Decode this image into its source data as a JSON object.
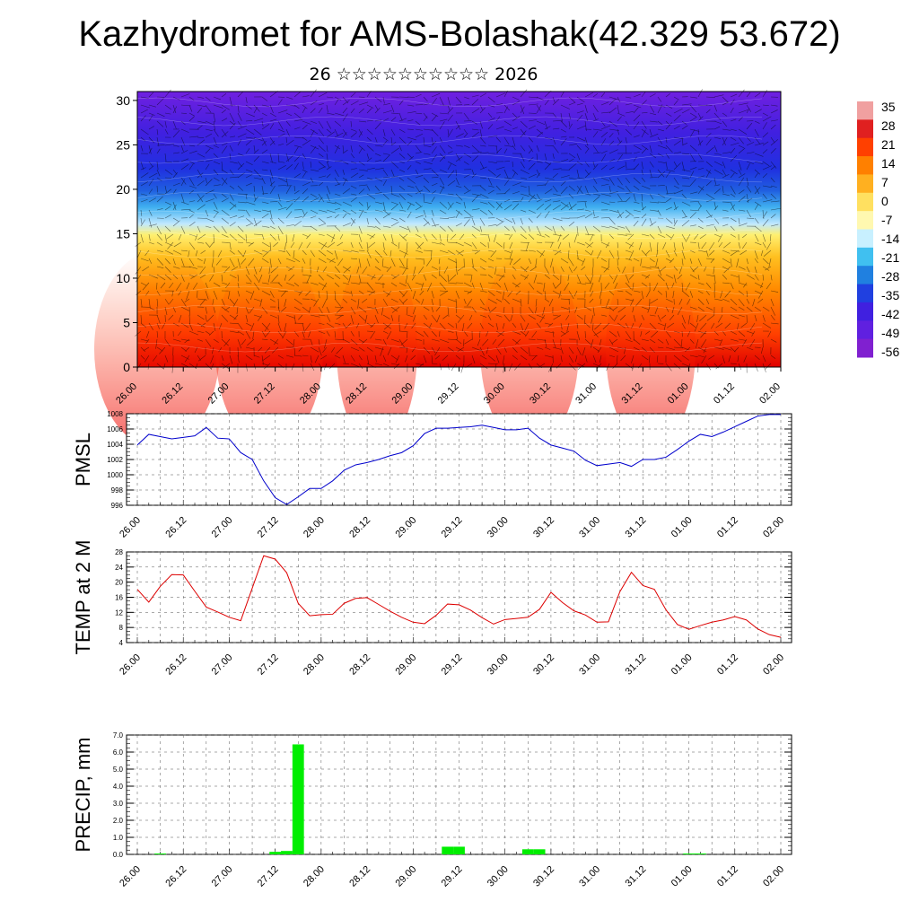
{
  "title": "Kazhydromet for AMS-Bolashak(42.329 53.672)",
  "subtitle": "26 ☆☆☆☆☆☆☆☆☆☆ 2026",
  "time_labels": [
    "26.00",
    "26.12",
    "27.00",
    "27.12",
    "28.00",
    "28.12",
    "29.00",
    "29.12",
    "30.00",
    "30.12",
    "31.00",
    "31.12",
    "01.00",
    "01.12",
    "02.00"
  ],
  "chart_data": [
    {
      "type": "heatmap",
      "name": "temperature-cross-section",
      "description_fields": [
        "temperature",
        "wind"
      ],
      "xlabel": "",
      "ylabel": "",
      "yticks": [
        0,
        5,
        10,
        15,
        20,
        25,
        30
      ],
      "ylim": [
        0,
        31
      ],
      "colorbar": {
        "labels": [
          "35",
          "28",
          "21",
          "14",
          "7",
          "0",
          "-7",
          "-14",
          "-21",
          "-28",
          "-35",
          "-42",
          "-49",
          "-56"
        ],
        "colors": [
          "#f0a0a0",
          "#e02020",
          "#ff4000",
          "#ff8000",
          "#ffb020",
          "#ffe060",
          "#fff8b0",
          "#c8f0ff",
          "#40c0f0",
          "#2080e0",
          "#2040e0",
          "#4020e0",
          "#6020e0",
          "#8020d0"
        ]
      }
    },
    {
      "type": "line",
      "name": "pmsl",
      "ylabel": "PMSL",
      "ylim": [
        996,
        1008
      ],
      "yticks": [
        "996",
        "998",
        "1000",
        "1002",
        "1004",
        "1006",
        "1008"
      ],
      "color": "#0000cc",
      "values": [
        1003.9,
        1005.3,
        1005.0,
        1004.7,
        1004.9,
        1005.1,
        1006.2,
        1004.8,
        1004.7,
        1002.9,
        1002.0,
        999.2,
        997.0,
        996.1,
        997.1,
        998.2,
        998.2,
        999.2,
        1000.6,
        1001.3,
        1001.6,
        1002.0,
        1002.5,
        1002.9,
        1003.8,
        1005.4,
        1006.1,
        1006.1,
        1006.2,
        1006.3,
        1006.5,
        1006.2,
        1005.9,
        1005.9,
        1006.1,
        1004.8,
        1003.9,
        1003.5,
        1003.1,
        1001.9,
        1001.2,
        1001.4,
        1001.6,
        1001.1,
        1002.0,
        1002.0,
        1002.3,
        1003.3,
        1004.4,
        1005.3,
        1005.0,
        1005.6,
        1006.3,
        1007.0,
        1007.7,
        1007.9,
        1007.9
      ]
    },
    {
      "type": "line",
      "name": "temp-2m",
      "ylabel": "TEMP at 2 M",
      "ylim": [
        4,
        28
      ],
      "yticks": [
        "4",
        "8",
        "12",
        "16",
        "20",
        "24",
        "28"
      ],
      "color": "#dd0000",
      "values": [
        18.1,
        14.7,
        18.9,
        22.0,
        21.9,
        17.6,
        13.4,
        12.1,
        10.7,
        9.8,
        18.4,
        27.0,
        26.1,
        22.5,
        14.4,
        11.1,
        11.4,
        11.5,
        14.4,
        15.7,
        15.9,
        14.1,
        12.3,
        10.7,
        9.4,
        9.0,
        11.2,
        14.2,
        14.0,
        12.6,
        10.6,
        8.9,
        10.1,
        10.4,
        10.7,
        12.8,
        17.3,
        14.6,
        12.4,
        11.3,
        9.4,
        9.5,
        17.5,
        22.6,
        19.1,
        18.1,
        12.7,
        8.8,
        7.5,
        8.5,
        9.4,
        10.0,
        10.9,
        10.0,
        7.6,
        6.1,
        5.4
      ]
    },
    {
      "type": "bar",
      "name": "precip",
      "ylabel": "PRECIP, mm",
      "ylim": [
        0,
        7
      ],
      "yticks": [
        "0.0",
        "1.0",
        "2.0",
        "3.0",
        "4.0",
        "5.0",
        "6.0",
        "7.0"
      ],
      "color": "#00ee00",
      "bars": [
        {
          "index": 2,
          "value": 0.05
        },
        {
          "index": 12,
          "value": 0.15
        },
        {
          "index": 13,
          "value": 0.2
        },
        {
          "index": 14,
          "value": 6.45
        },
        {
          "index": 27,
          "value": 0.45
        },
        {
          "index": 28,
          "value": 0.45
        },
        {
          "index": 34,
          "value": 0.3
        },
        {
          "index": 35,
          "value": 0.3
        },
        {
          "index": 48,
          "value": 0.05
        },
        {
          "index": 49,
          "value": 0.05
        }
      ]
    }
  ]
}
